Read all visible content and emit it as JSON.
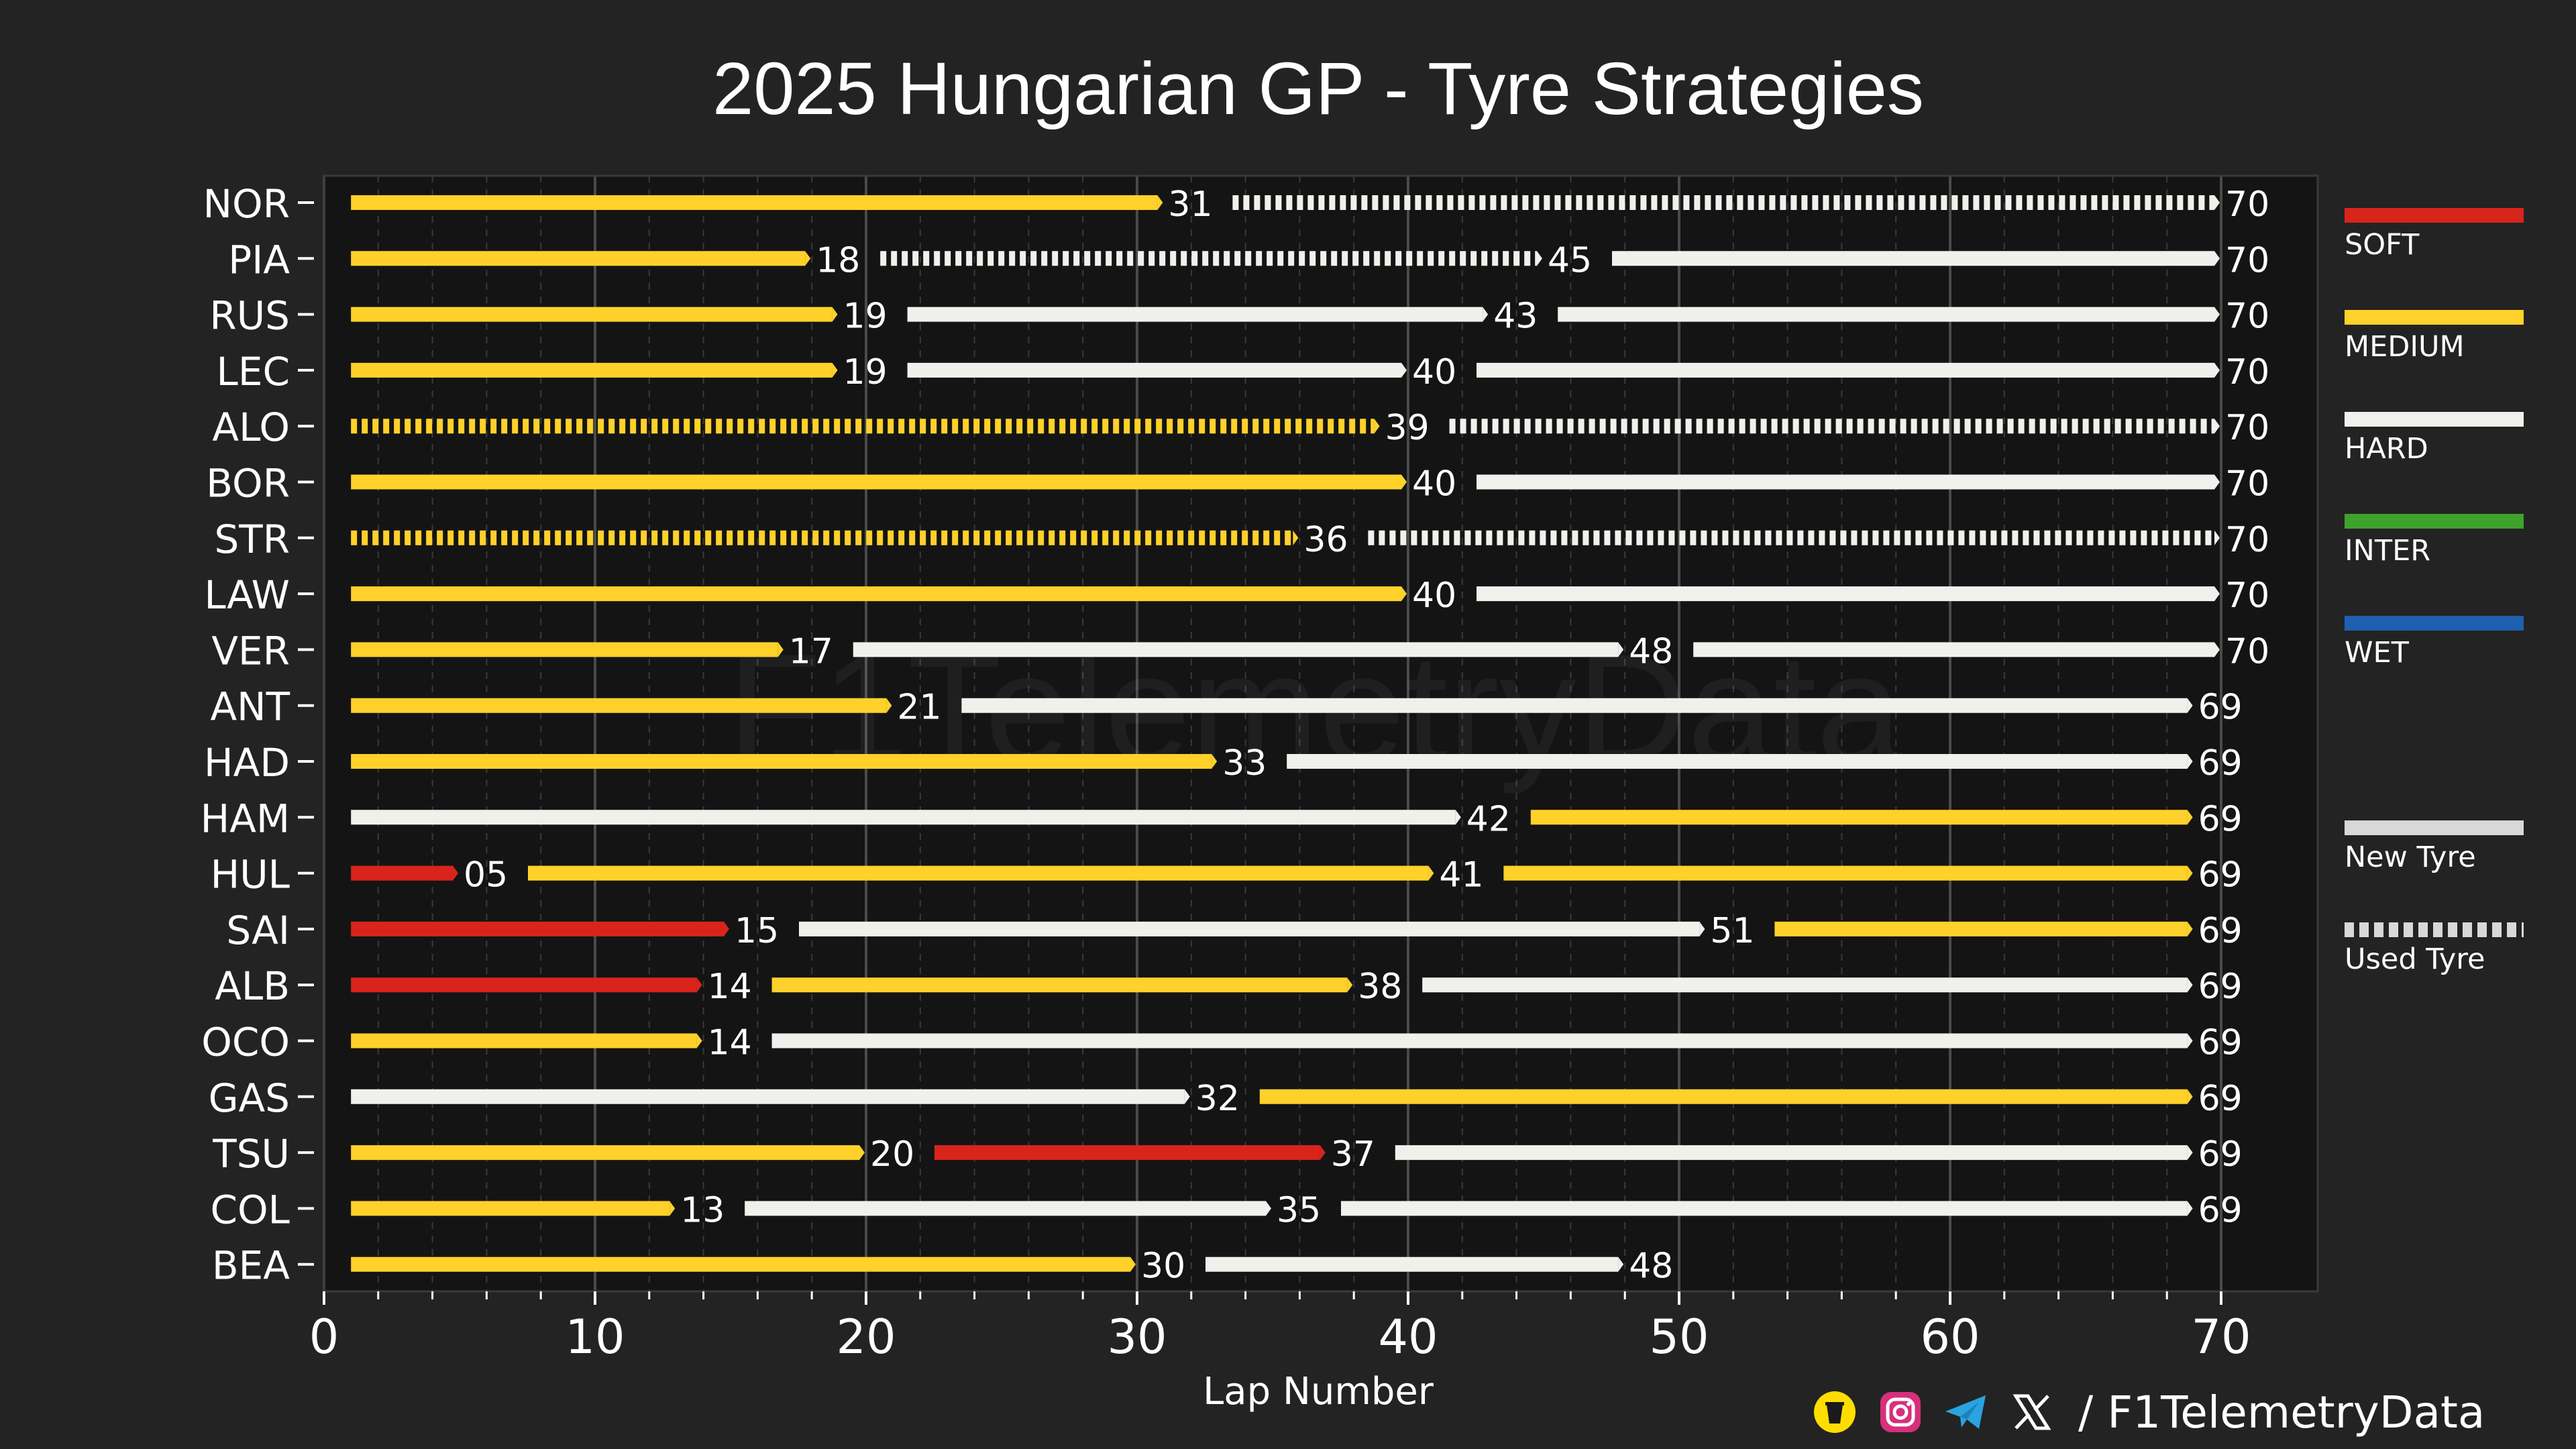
{
  "chart_data": {
    "type": "bar",
    "subtype": "horizontal-stacked-stints",
    "title": "2025 Hungarian GP - Tyre Strategies",
    "xlabel": "Lap Number",
    "ylabel": "",
    "xlim": [
      0,
      70
    ],
    "xticks": [
      0,
      10,
      20,
      30,
      40,
      50,
      60,
      70
    ],
    "watermark": "F1TelemetryData",
    "compound_colors": {
      "SOFT": "#d9241c",
      "MEDIUM": "#ffd12a",
      "HARD": "#f0f0ec",
      "INTER": "#3ea32d",
      "WET": "#1f5fb0"
    },
    "drivers": [
      {
        "code": "NOR",
        "stints": [
          {
            "compound": "MEDIUM",
            "end": 31,
            "new": true
          },
          {
            "compound": "HARD",
            "end": 70,
            "new": false
          }
        ]
      },
      {
        "code": "PIA",
        "stints": [
          {
            "compound": "MEDIUM",
            "end": 18,
            "new": true
          },
          {
            "compound": "HARD",
            "end": 45,
            "new": false
          },
          {
            "compound": "HARD",
            "end": 70,
            "new": true
          }
        ]
      },
      {
        "code": "RUS",
        "stints": [
          {
            "compound": "MEDIUM",
            "end": 19,
            "new": true
          },
          {
            "compound": "HARD",
            "end": 43,
            "new": true
          },
          {
            "compound": "HARD",
            "end": 70,
            "new": true
          }
        ]
      },
      {
        "code": "LEC",
        "stints": [
          {
            "compound": "MEDIUM",
            "end": 19,
            "new": true
          },
          {
            "compound": "HARD",
            "end": 40,
            "new": true
          },
          {
            "compound": "HARD",
            "end": 70,
            "new": true
          }
        ]
      },
      {
        "code": "ALO",
        "stints": [
          {
            "compound": "MEDIUM",
            "end": 39,
            "new": false
          },
          {
            "compound": "HARD",
            "end": 70,
            "new": false
          }
        ]
      },
      {
        "code": "BOR",
        "stints": [
          {
            "compound": "MEDIUM",
            "end": 40,
            "new": true
          },
          {
            "compound": "HARD",
            "end": 70,
            "new": true
          }
        ]
      },
      {
        "code": "STR",
        "stints": [
          {
            "compound": "MEDIUM",
            "end": 36,
            "new": false
          },
          {
            "compound": "HARD",
            "end": 70,
            "new": false
          }
        ]
      },
      {
        "code": "LAW",
        "stints": [
          {
            "compound": "MEDIUM",
            "end": 40,
            "new": true
          },
          {
            "compound": "HARD",
            "end": 70,
            "new": true
          }
        ]
      },
      {
        "code": "VER",
        "stints": [
          {
            "compound": "MEDIUM",
            "end": 17,
            "new": true
          },
          {
            "compound": "HARD",
            "end": 48,
            "new": true
          },
          {
            "compound": "HARD",
            "end": 70,
            "new": true
          }
        ]
      },
      {
        "code": "ANT",
        "stints": [
          {
            "compound": "MEDIUM",
            "end": 21,
            "new": true
          },
          {
            "compound": "HARD",
            "end": 69,
            "new": true
          }
        ]
      },
      {
        "code": "HAD",
        "stints": [
          {
            "compound": "MEDIUM",
            "end": 33,
            "new": true
          },
          {
            "compound": "HARD",
            "end": 69,
            "new": true
          }
        ]
      },
      {
        "code": "HAM",
        "stints": [
          {
            "compound": "HARD",
            "end": 42,
            "new": true
          },
          {
            "compound": "MEDIUM",
            "end": 69,
            "new": true
          }
        ]
      },
      {
        "code": "HUL",
        "stints": [
          {
            "compound": "SOFT",
            "end": 5,
            "label": "05",
            "new": true
          },
          {
            "compound": "MEDIUM",
            "end": 41,
            "new": true
          },
          {
            "compound": "MEDIUM",
            "end": 69,
            "new": true
          }
        ]
      },
      {
        "code": "SAI",
        "stints": [
          {
            "compound": "SOFT",
            "end": 15,
            "new": true
          },
          {
            "compound": "HARD",
            "end": 51,
            "new": true
          },
          {
            "compound": "MEDIUM",
            "end": 69,
            "new": true
          }
        ]
      },
      {
        "code": "ALB",
        "stints": [
          {
            "compound": "SOFT",
            "end": 14,
            "new": true
          },
          {
            "compound": "MEDIUM",
            "end": 38,
            "new": true
          },
          {
            "compound": "HARD",
            "end": 69,
            "new": true
          }
        ]
      },
      {
        "code": "OCO",
        "stints": [
          {
            "compound": "MEDIUM",
            "end": 14,
            "new": true
          },
          {
            "compound": "HARD",
            "end": 69,
            "new": true
          }
        ]
      },
      {
        "code": "GAS",
        "stints": [
          {
            "compound": "HARD",
            "end": 32,
            "new": true
          },
          {
            "compound": "MEDIUM",
            "end": 69,
            "new": true
          }
        ]
      },
      {
        "code": "TSU",
        "stints": [
          {
            "compound": "MEDIUM",
            "end": 20,
            "new": true
          },
          {
            "compound": "SOFT",
            "end": 37,
            "new": true
          },
          {
            "compound": "HARD",
            "end": 69,
            "new": true
          }
        ]
      },
      {
        "code": "COL",
        "stints": [
          {
            "compound": "MEDIUM",
            "end": 13,
            "new": true
          },
          {
            "compound": "HARD",
            "end": 35,
            "new": true
          },
          {
            "compound": "HARD",
            "end": 69,
            "new": true
          }
        ]
      },
      {
        "code": "BEA",
        "stints": [
          {
            "compound": "MEDIUM",
            "end": 30,
            "new": true
          },
          {
            "compound": "HARD",
            "end": 48,
            "new": true
          }
        ]
      }
    ]
  },
  "legend": {
    "compounds": [
      {
        "label": "SOFT",
        "color": "#d9241c"
      },
      {
        "label": "MEDIUM",
        "color": "#ffd12a"
      },
      {
        "label": "HARD",
        "color": "#f0f0ec"
      },
      {
        "label": "INTER",
        "color": "#3ea32d"
      },
      {
        "label": "WET",
        "color": "#1f5fb0"
      }
    ],
    "new_tyre": "New Tyre",
    "used_tyre": "Used Tyre"
  },
  "footer": {
    "handle": "/ F1TelemetryData",
    "icons": [
      "buymeacoffee-icon",
      "instagram-icon",
      "telegram-icon",
      "x-icon"
    ]
  }
}
